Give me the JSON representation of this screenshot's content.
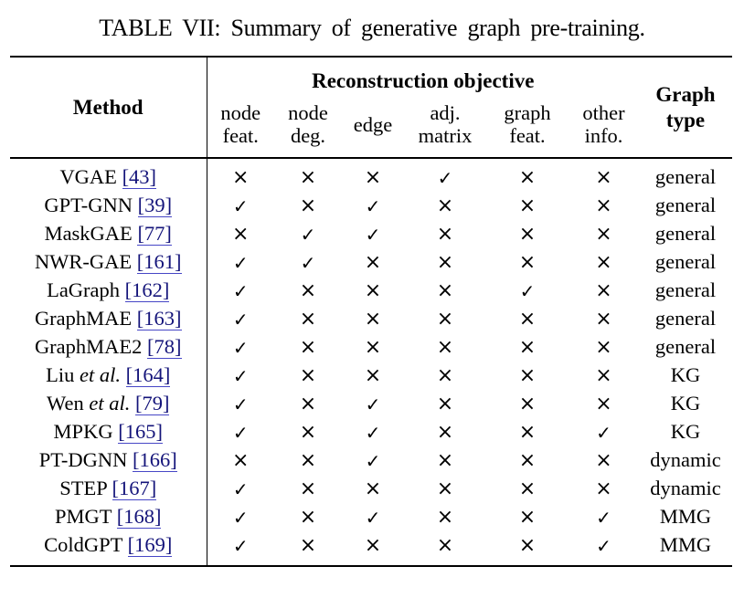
{
  "caption": "TABLE VII: Summary of generative graph pre-training.",
  "colors": {
    "text": "#000000",
    "citation_text": "#14147a",
    "citation_underline": "#4646c6",
    "rule": "#000000",
    "background": "#ffffff"
  },
  "marks": {
    "check": "✓",
    "cross": "×"
  },
  "header": {
    "method": "Method",
    "group": "Reconstruction objective",
    "graph_type_line1": "Graph",
    "graph_type_line2": "type",
    "subcolumns": [
      {
        "key": "node-feat",
        "line1": "node",
        "line2": "feat."
      },
      {
        "key": "node-deg",
        "line1": "node",
        "line2": "deg."
      },
      {
        "key": "edge",
        "line1": "edge",
        "line2": ""
      },
      {
        "key": "adj-matrix",
        "line1": "adj.",
        "line2": "matrix"
      },
      {
        "key": "graph-feat",
        "line1": "graph",
        "line2": "feat."
      },
      {
        "key": "other-info",
        "line1": "other",
        "line2": "info."
      }
    ]
  },
  "table": {
    "rows": [
      {
        "name": "VGAE",
        "italic": "",
        "cite": "[43]",
        "marks": [
          "cross",
          "cross",
          "cross",
          "check",
          "cross",
          "cross"
        ],
        "graph_type": "general"
      },
      {
        "name": "GPT-GNN",
        "italic": "",
        "cite": "[39]",
        "marks": [
          "check",
          "cross",
          "check",
          "cross",
          "cross",
          "cross"
        ],
        "graph_type": "general"
      },
      {
        "name": "MaskGAE",
        "italic": "",
        "cite": "[77]",
        "marks": [
          "cross",
          "check",
          "check",
          "cross",
          "cross",
          "cross"
        ],
        "graph_type": "general"
      },
      {
        "name": "NWR-GAE",
        "italic": "",
        "cite": "[161]",
        "marks": [
          "check",
          "check",
          "cross",
          "cross",
          "cross",
          "cross"
        ],
        "graph_type": "general"
      },
      {
        "name": "LaGraph",
        "italic": "",
        "cite": "[162]",
        "marks": [
          "check",
          "cross",
          "cross",
          "cross",
          "check",
          "cross"
        ],
        "graph_type": "general"
      },
      {
        "name": "GraphMAE",
        "italic": "",
        "cite": "[163]",
        "marks": [
          "check",
          "cross",
          "cross",
          "cross",
          "cross",
          "cross"
        ],
        "graph_type": "general"
      },
      {
        "name": "GraphMAE2",
        "italic": "",
        "cite": "[78]",
        "marks": [
          "check",
          "cross",
          "cross",
          "cross",
          "cross",
          "cross"
        ],
        "graph_type": "general"
      },
      {
        "name": "Liu",
        "italic": "et al.",
        "cite": "[164]",
        "marks": [
          "check",
          "cross",
          "cross",
          "cross",
          "cross",
          "cross"
        ],
        "graph_type": "KG"
      },
      {
        "name": "Wen",
        "italic": "et al.",
        "cite": "[79]",
        "marks": [
          "check",
          "cross",
          "check",
          "cross",
          "cross",
          "cross"
        ],
        "graph_type": "KG"
      },
      {
        "name": "MPKG",
        "italic": "",
        "cite": "[165]",
        "marks": [
          "check",
          "cross",
          "check",
          "cross",
          "cross",
          "check"
        ],
        "graph_type": "KG"
      },
      {
        "name": "PT-DGNN",
        "italic": "",
        "cite": "[166]",
        "marks": [
          "cross",
          "cross",
          "check",
          "cross",
          "cross",
          "cross"
        ],
        "graph_type": "dynamic"
      },
      {
        "name": "STEP",
        "italic": "",
        "cite": "[167]",
        "marks": [
          "check",
          "cross",
          "cross",
          "cross",
          "cross",
          "cross"
        ],
        "graph_type": "dynamic"
      },
      {
        "name": "PMGT",
        "italic": "",
        "cite": "[168]",
        "marks": [
          "check",
          "cross",
          "check",
          "cross",
          "cross",
          "check"
        ],
        "graph_type": "MMG"
      },
      {
        "name": "ColdGPT",
        "italic": "",
        "cite": "[169]",
        "marks": [
          "check",
          "cross",
          "cross",
          "cross",
          "cross",
          "check"
        ],
        "graph_type": "MMG"
      }
    ]
  }
}
